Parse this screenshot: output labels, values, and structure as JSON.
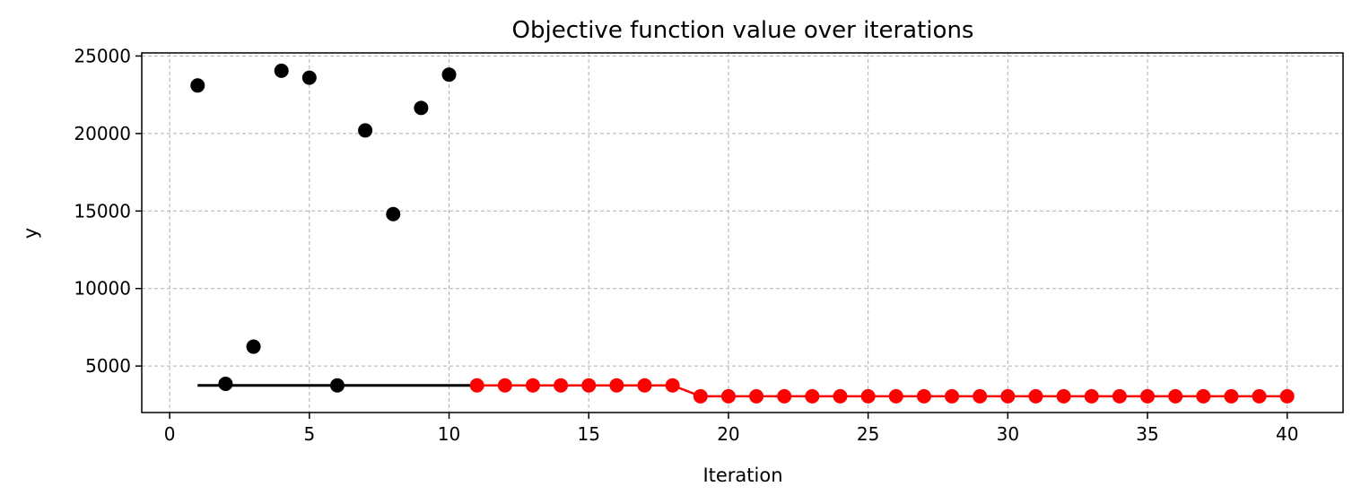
{
  "chart_data": {
    "type": "scatter",
    "title": "Objective function value over iterations",
    "xlabel": "Iteration",
    "ylabel": "y",
    "xlim": [
      -1,
      42
    ],
    "ylim": [
      2000,
      25200
    ],
    "xticks": [
      0,
      5,
      10,
      15,
      20,
      25,
      30,
      35,
      40
    ],
    "yticks": [
      5000,
      10000,
      15000,
      20000,
      25000
    ],
    "grid": true,
    "colors": {
      "initial": "#000000",
      "optimization": "#ff0000",
      "grid": "#b0b0b0"
    },
    "series": [
      {
        "role": "initial",
        "color": "#000000",
        "x": [
          1,
          2,
          3,
          4,
          5,
          6,
          7,
          8,
          9,
          10
        ],
        "values": [
          23100,
          3850,
          6250,
          24050,
          23600,
          3750,
          20200,
          14800,
          21650,
          23800
        ]
      },
      {
        "role": "optimization",
        "color": "#ff0000",
        "x": [
          11,
          12,
          13,
          14,
          15,
          16,
          17,
          18,
          19,
          20,
          21,
          22,
          23,
          24,
          25,
          26,
          27,
          28,
          29,
          30,
          31,
          32,
          33,
          34,
          35,
          36,
          37,
          38,
          39,
          40
        ],
        "values": [
          3750,
          3750,
          3750,
          3750,
          3750,
          3750,
          3750,
          3750,
          3050,
          3050,
          3050,
          3050,
          3050,
          3050,
          3050,
          3050,
          3050,
          3050,
          3050,
          3050,
          3050,
          3050,
          3050,
          3050,
          3050,
          3050,
          3050,
          3050,
          3050,
          3050
        ]
      }
    ],
    "best_so_far_initial": {
      "x": [
        1,
        11
      ],
      "value": 3750,
      "color": "#000000"
    }
  }
}
